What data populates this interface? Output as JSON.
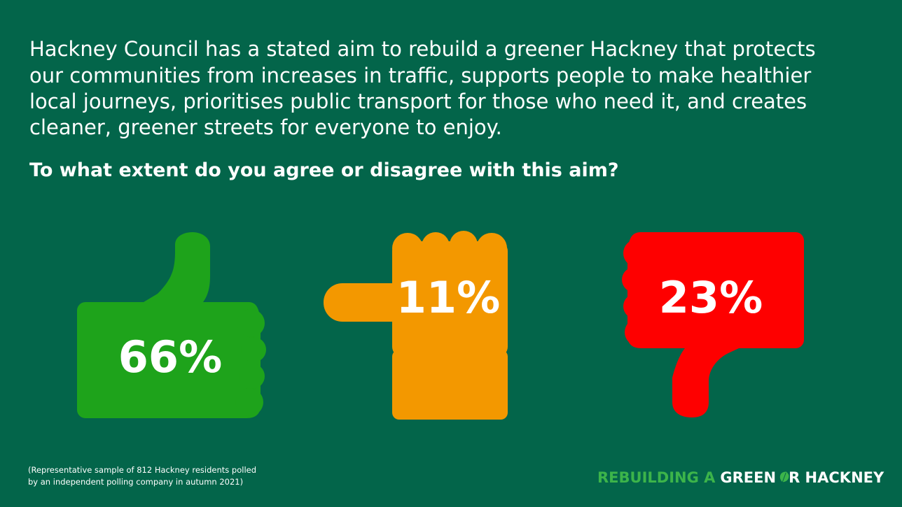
{
  "intro_lines": [
    "Hackney Council has a stated aim to rebuild a greener Hackney that protects",
    "our communities from increases in traffic, supports people to make healthier",
    "local journeys, prioritises public transport for those who need it, and creates",
    "cleaner, greener streets for everyone to enjoy."
  ],
  "question": "To what extent do you agree or disagree with this aim?",
  "results": {
    "agree": "66%",
    "neutral": "11%",
    "disagree": "23%"
  },
  "footnote_lines": [
    "(Representative sample of 812 Hackney residents polled",
    "by an independent polling company in autumn 2021)"
  ],
  "logo": {
    "part1": "REBUILDING A",
    "part2": "GREEN",
    "part3": "R HACKNEY"
  }
}
